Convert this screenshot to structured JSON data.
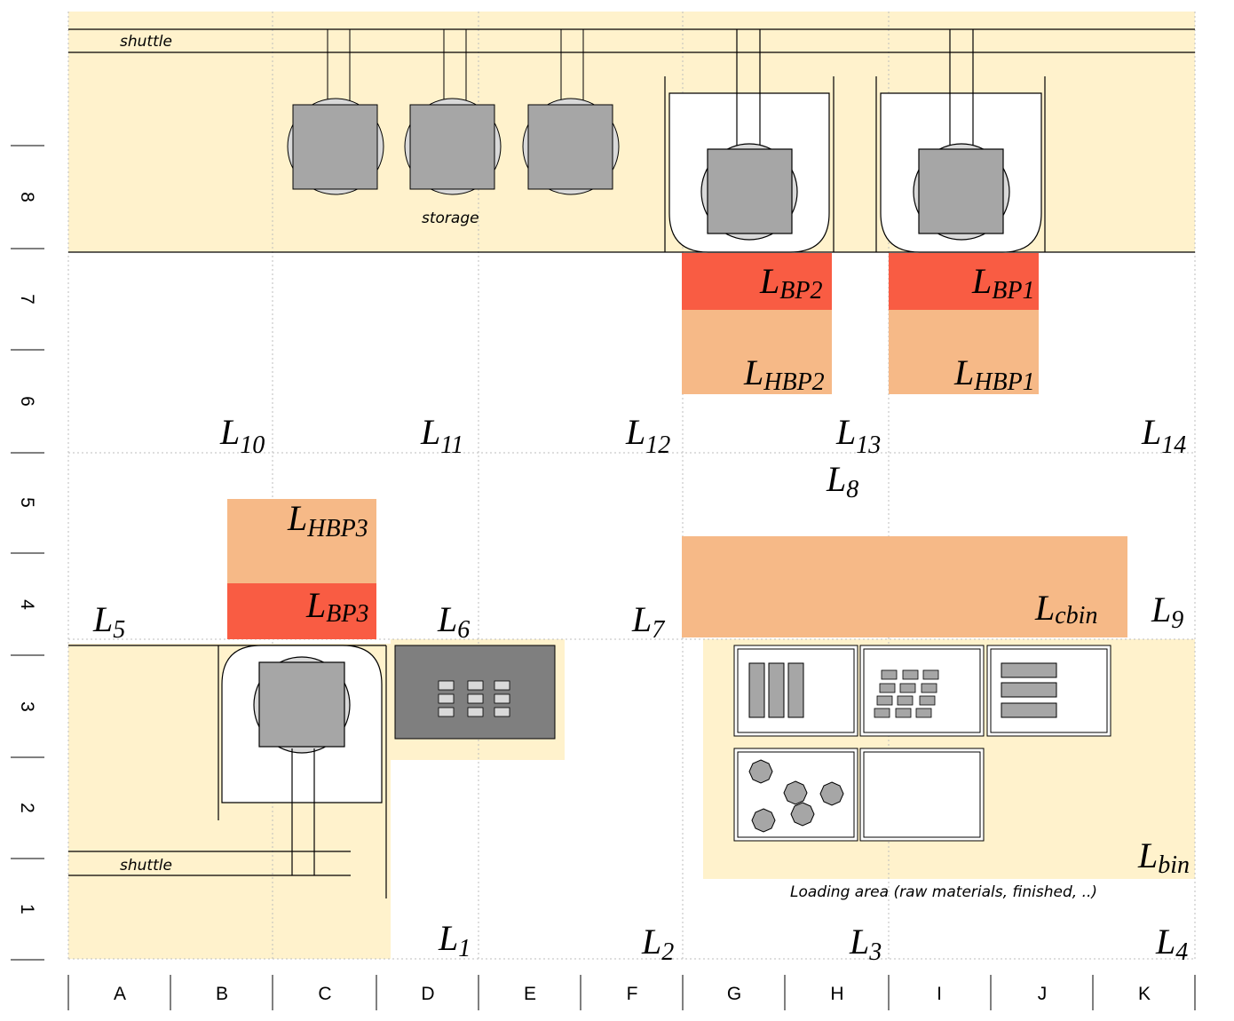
{
  "texts": {
    "shuttle_top": "shuttle",
    "shuttle_bottom": "shuttle",
    "storage": "storage",
    "loading_area": "Loading area (raw materials, finished, ..)"
  },
  "columns": [
    "A",
    "B",
    "C",
    "D",
    "E",
    "F",
    "G",
    "H",
    "I",
    "J",
    "K"
  ],
  "rows": [
    "8",
    "7",
    "6",
    "5",
    "4",
    "3",
    "2",
    "1"
  ],
  "locations": [
    {
      "key": "L10",
      "base": "L",
      "sub": "10"
    },
    {
      "key": "L11",
      "base": "L",
      "sub": "11"
    },
    {
      "key": "L12",
      "base": "L",
      "sub": "12"
    },
    {
      "key": "L13",
      "base": "L",
      "sub": "13"
    },
    {
      "key": "L14",
      "base": "L",
      "sub": "14"
    },
    {
      "key": "L8",
      "base": "L",
      "sub": "8"
    },
    {
      "key": "L5",
      "base": "L",
      "sub": "5"
    },
    {
      "key": "L6",
      "base": "L",
      "sub": "6"
    },
    {
      "key": "L7",
      "base": "L",
      "sub": "7"
    },
    {
      "key": "L9",
      "base": "L",
      "sub": "9"
    },
    {
      "key": "L1",
      "base": "L",
      "sub": "1"
    },
    {
      "key": "L2",
      "base": "L",
      "sub": "2"
    },
    {
      "key": "L3",
      "base": "L",
      "sub": "3"
    },
    {
      "key": "L4",
      "base": "L",
      "sub": "4"
    },
    {
      "key": "LBP2",
      "base": "L",
      "sub": "BP2"
    },
    {
      "key": "LBP1",
      "base": "L",
      "sub": "BP1"
    },
    {
      "key": "LHBP2",
      "base": "L",
      "sub": "HBP2"
    },
    {
      "key": "LHBP1",
      "base": "L",
      "sub": "HBP1"
    },
    {
      "key": "LHBP3",
      "base": "L",
      "sub": "HBP3"
    },
    {
      "key": "LBP3",
      "base": "L",
      "sub": "BP3"
    },
    {
      "key": "Lcbin",
      "base": "L",
      "sub": "cbin"
    },
    {
      "key": "Lbin",
      "base": "L",
      "sub": "bin"
    }
  ],
  "colors": {
    "zone": "#fff2cc",
    "buffer_red": "#f95c43",
    "buffer_orange": "#f6b987",
    "machine_gray": "#a6a6a6",
    "circle_gray": "#d9d9d9",
    "dark_gray": "#7f7f7f"
  }
}
